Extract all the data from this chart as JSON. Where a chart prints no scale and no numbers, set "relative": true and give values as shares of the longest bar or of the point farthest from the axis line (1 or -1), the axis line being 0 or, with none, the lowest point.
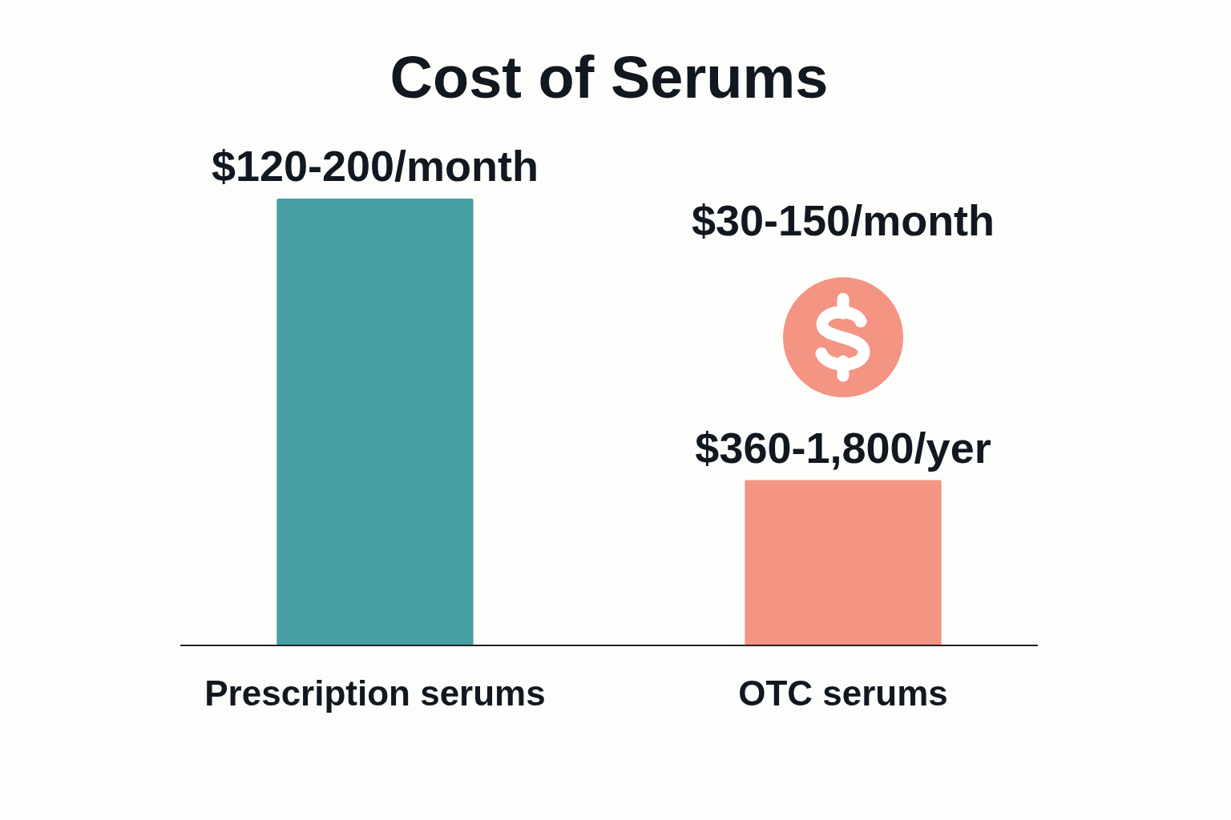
{
  "chart_data": {
    "type": "bar",
    "title": "Cost of Serums",
    "categories": [
      "Prescription serums",
      "OTC serums"
    ],
    "values": [
      1,
      0.37
    ],
    "colors": [
      "#479ea3",
      "#f49483"
    ],
    "relative": true,
    "annotations": [
      {
        "text": "$120-200/month",
        "x": "Prescription serums",
        "y": 1
      },
      "$30-150/month",
      {
        "text": "$360-1,800/yer",
        "x": "OTC serums",
        "y": 0.37
      }
    ]
  }
}
